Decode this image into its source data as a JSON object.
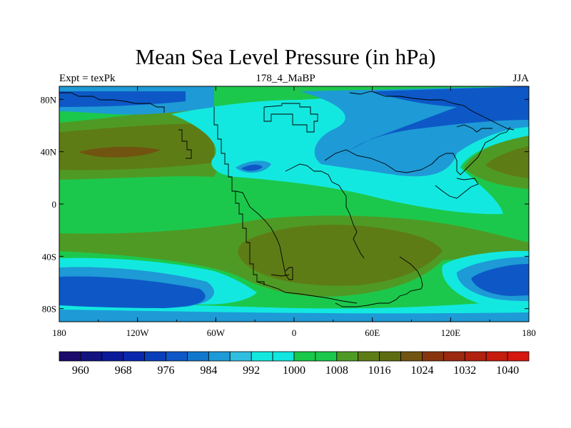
{
  "chart_data": {
    "type": "heatmap",
    "title": "Mean Sea Level Pressure (in hPa)",
    "left_label": "Expt = texPk",
    "center_label": "178_4_MaBP",
    "right_label": "JJA",
    "x_range": [
      -180,
      180
    ],
    "y_range": [
      -90,
      90
    ],
    "x_ticks": [
      {
        "value": -180,
        "label": "180"
      },
      {
        "value": -120,
        "label": "120W"
      },
      {
        "value": -60,
        "label": "60W"
      },
      {
        "value": 0,
        "label": "0"
      },
      {
        "value": 60,
        "label": "60E"
      },
      {
        "value": 120,
        "label": "120E"
      },
      {
        "value": 180,
        "label": "180"
      }
    ],
    "y_ticks": [
      {
        "value": 80,
        "label": "80N"
      },
      {
        "value": 40,
        "label": "40N"
      },
      {
        "value": 0,
        "label": "0"
      },
      {
        "value": -40,
        "label": "40S"
      },
      {
        "value": -80,
        "label": "80S"
      }
    ],
    "levels": [
      960,
      964,
      968,
      972,
      976,
      980,
      984,
      988,
      992,
      996,
      1000,
      1004,
      1008,
      1012,
      1016,
      1020,
      1024,
      1028,
      1032,
      1036,
      1040
    ],
    "level_labels": [
      "960",
      "968",
      "976",
      "984",
      "992",
      "1000",
      "1008",
      "1016",
      "1024",
      "1032",
      "1040"
    ],
    "colorbar_colors": [
      "#1b0a6b",
      "#13127f",
      "#0a1a99",
      "#0828ad",
      "#0a3fba",
      "#0d58c6",
      "#1177cc",
      "#1e9ad6",
      "#30bfe0",
      "#13e8e0",
      "#11e6e0",
      "#18c848",
      "#1cc84c",
      "#4f9a25",
      "#5e7c16",
      "#5d6c10",
      "#71540f",
      "#88350e",
      "#9a2910",
      "#b0210e",
      "#c51c0e",
      "#d5170f"
    ],
    "field_colors": {
      "p984": "#0d58c6",
      "p988": "#1e9ad6",
      "p996": "#13e8e0",
      "p1004": "#1cc84c",
      "p1012": "#4f9a25",
      "p1016": "#5e7c16",
      "p1020": "#71540f"
    }
  }
}
